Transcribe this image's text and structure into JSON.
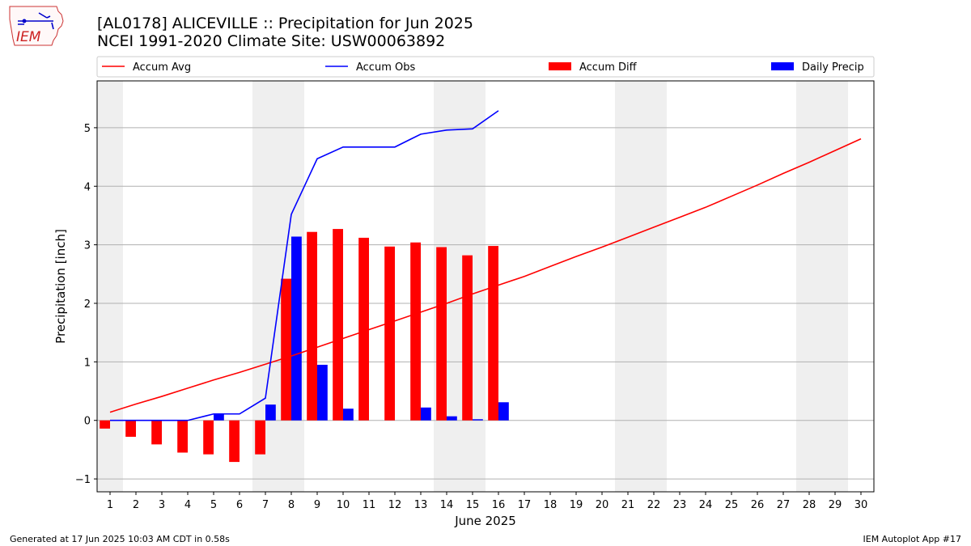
{
  "header": {
    "title_line1": "[AL0178] ALICEVILLE :: Precipitation for Jun 2025",
    "title_line2": "NCEI 1991-2020 Climate Site: USW00063892",
    "logo_text": "IEM"
  },
  "footer": {
    "left": "Generated at 17 Jun 2025 10:03 AM CDT in 0.58s",
    "right": "IEM Autoplot App #17"
  },
  "colors": {
    "avg": "#ff0000",
    "obs": "#0000ff",
    "diff": "#ff0000",
    "daily": "#0000ff",
    "weekend_shade": "#efefef",
    "grid": "#b0b0b0"
  },
  "chart_data": {
    "type": "bar",
    "xlabel": "June 2025",
    "ylabel": "Precipitation [inch]",
    "xlim": [
      0.5,
      30.5
    ],
    "ylim": [
      -1.22,
      5.8
    ],
    "yticks": [
      -1,
      0,
      1,
      2,
      3,
      4,
      5
    ],
    "grid": "horizontal",
    "legend_placement": "top (above plot)",
    "days": [
      1,
      2,
      3,
      4,
      5,
      6,
      7,
      8,
      9,
      10,
      11,
      12,
      13,
      14,
      15,
      16,
      17,
      18,
      19,
      20,
      21,
      22,
      23,
      24,
      25,
      26,
      27,
      28,
      29,
      30
    ],
    "shaded_ranges": [
      [
        0.5,
        1.5
      ],
      [
        6.5,
        8.5
      ],
      [
        13.5,
        15.5
      ],
      [
        20.5,
        22.5
      ],
      [
        27.5,
        29.5
      ]
    ],
    "legend": [
      "Accum Avg",
      "Accum Obs",
      "Accum Diff",
      "Daily Precip"
    ],
    "series": [
      {
        "name": "Accum Avg",
        "kind": "line",
        "color": "#ff0000",
        "x": [
          1,
          2,
          3,
          4,
          5,
          6,
          7,
          8,
          9,
          10,
          11,
          12,
          13,
          14,
          15,
          16,
          17,
          18,
          19,
          20,
          21,
          22,
          23,
          24,
          25,
          26,
          27,
          28,
          29,
          30
        ],
        "values": [
          0.14,
          0.28,
          0.41,
          0.55,
          0.69,
          0.82,
          0.96,
          1.1,
          1.25,
          1.4,
          1.55,
          1.7,
          1.85,
          2.0,
          2.16,
          2.31,
          2.46,
          2.63,
          2.8,
          2.96,
          3.13,
          3.3,
          3.47,
          3.64,
          3.83,
          4.02,
          4.22,
          4.41,
          4.61,
          4.81
        ]
      },
      {
        "name": "Accum Obs",
        "kind": "line",
        "color": "#0000ff",
        "x": [
          1,
          2,
          3,
          4,
          5,
          6,
          7,
          8,
          9,
          10,
          11,
          12,
          13,
          14,
          15,
          16
        ],
        "values": [
          0.0,
          0.0,
          0.0,
          0.0,
          0.11,
          0.11,
          0.38,
          3.52,
          4.47,
          4.67,
          4.67,
          4.67,
          4.89,
          4.96,
          4.98,
          5.29
        ]
      },
      {
        "name": "Accum Diff",
        "kind": "bar",
        "color": "#ff0000",
        "x": [
          1,
          2,
          3,
          4,
          5,
          6,
          7,
          8,
          9,
          10,
          11,
          12,
          13,
          14,
          15,
          16
        ],
        "values": [
          -0.14,
          -0.28,
          -0.41,
          -0.55,
          -0.58,
          -0.71,
          -0.58,
          2.42,
          3.22,
          3.27,
          3.12,
          2.97,
          3.04,
          2.96,
          2.82,
          2.98
        ]
      },
      {
        "name": "Daily Precip",
        "kind": "bar",
        "color": "#0000ff",
        "x": [
          1,
          2,
          3,
          4,
          5,
          6,
          7,
          8,
          9,
          10,
          11,
          12,
          13,
          14,
          15,
          16
        ],
        "values": [
          0.0,
          0.0,
          0.0,
          0.0,
          0.11,
          0.0,
          0.27,
          3.14,
          0.95,
          0.2,
          0.0,
          0.0,
          0.22,
          0.07,
          0.02,
          0.31
        ]
      }
    ]
  }
}
